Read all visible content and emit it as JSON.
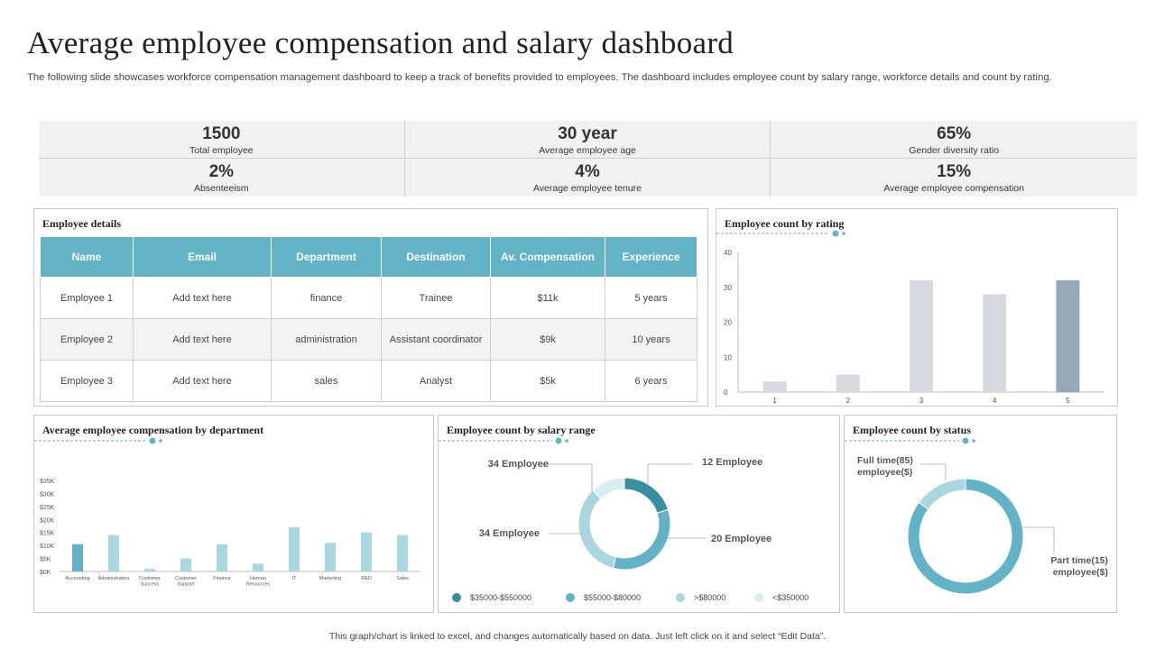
{
  "header": {
    "title": "Average employee compensation and salary dashboard",
    "subtitle": "The following slide showcases workforce compensation management dashboard to keep a track of benefits provided to employees. The dashboard includes employee count by salary range, workforce details and count by rating."
  },
  "kpis": [
    {
      "value": "1500",
      "label": "Total employee"
    },
    {
      "value": "30 year",
      "label": "Average employee age"
    },
    {
      "value": "65%",
      "label": "Gender diversity ratio"
    },
    {
      "value": "2%",
      "label": "Absenteeism"
    },
    {
      "value": "4%",
      "label": "Average employee tenure"
    },
    {
      "value": "15%",
      "label": "Average employee compensation"
    }
  ],
  "employee_details": {
    "title": "Employee  details",
    "columns": [
      "Name",
      "Email",
      "Department",
      "Destination",
      "Av. Compensation",
      "Experience"
    ],
    "rows": [
      [
        "Employee  1",
        "Add text here",
        "finance",
        "Trainee",
        "$11k",
        "5 years"
      ],
      [
        "Employee  2",
        "Add text here",
        "administration",
        "Assistant coordinator",
        "$9k",
        "10 years"
      ],
      [
        "Employee  3",
        "Add text here",
        "sales",
        "Analyst",
        "$5k",
        "6 years"
      ]
    ]
  },
  "panels": {
    "rating_title": "Employee  count  by rating",
    "dept_title": "Average  employee  compensation  by  department",
    "salary_title": "Employee  count  by  salary  range",
    "status_title": "Employee  count  by  status"
  },
  "colors": {
    "teal": "#62b3c5",
    "dark_teal": "#3a8f9f",
    "light_teal": "#a9d6df",
    "pale_teal": "#d6eef2",
    "grey_bar": "#d6dade",
    "slate_bar": "#96a8b7"
  },
  "chart_data": [
    {
      "type": "bar",
      "title": "Employee  count  by rating",
      "categories": [
        "1",
        "2",
        "3",
        "4",
        "5"
      ],
      "values": [
        3,
        5,
        32,
        28,
        32
      ],
      "ylim": [
        0,
        40
      ],
      "yticks": [
        "0",
        "10",
        "20",
        "30",
        "40"
      ],
      "grid": false
    },
    {
      "type": "bar",
      "title": "Average  employee  compensation  by  department",
      "categories": [
        "Accounting",
        "Administration",
        "Customer Success",
        "Customer Support",
        "Finance",
        "Human Resources",
        "IT",
        "Marketing",
        "R&D",
        "Sales"
      ],
      "values": [
        10500,
        14000,
        1000,
        5000,
        10500,
        3000,
        17000,
        11000,
        15000,
        14000
      ],
      "ylim": [
        0,
        35000
      ],
      "yticks": [
        "$0K",
        "$5K",
        "$10K",
        "$15K",
        "$20K",
        "$25K",
        "$30K",
        "$35K"
      ]
    },
    {
      "type": "pie",
      "title": "Employee  count  by  salary  range",
      "slices": [
        {
          "label": "$35000-$550000",
          "value": 20,
          "callout": "20 Employee"
        },
        {
          "label": "$55000-$80000",
          "value": 34,
          "callout": "34 Employee"
        },
        {
          "label": ">$80000",
          "value": 34,
          "callout": "34 Employee"
        },
        {
          "label": "<$350000",
          "value": 12,
          "callout": "12 Employee"
        }
      ]
    },
    {
      "type": "pie",
      "title": "Employee  count  by  status",
      "slices": [
        {
          "label": "Part time(15) employee($)",
          "value": 15
        },
        {
          "label": "Full time(85) employee($)",
          "value": 85
        }
      ],
      "callouts": [
        "Full time(85)",
        "employee($)",
        "Part time(15)",
        "employee($)"
      ]
    }
  ],
  "footer": "This graph/chart is linked to excel, and changes automatically based on data. Just left click on it and select “Edit Data”."
}
